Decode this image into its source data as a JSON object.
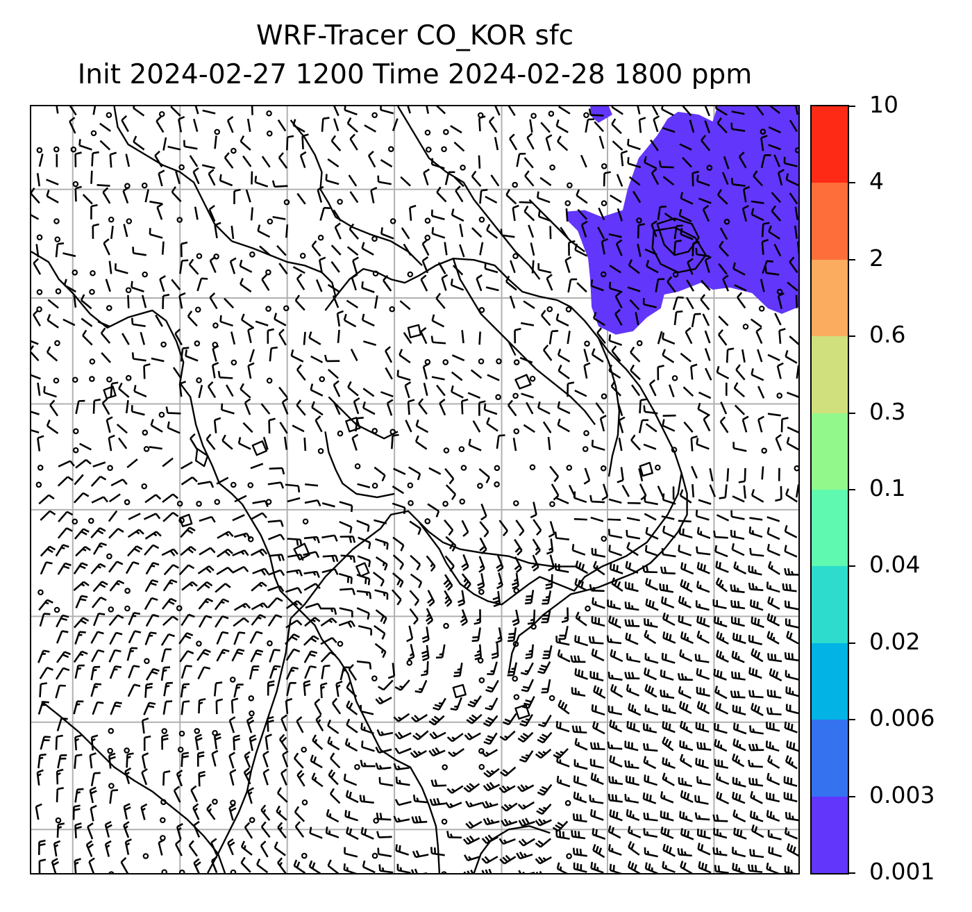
{
  "title": {
    "line1": "WRF-Tracer CO_KOR sfc",
    "line2": "Init 2024-02-27 1200 Time 2024-02-28 1800 ppm"
  },
  "colorbar": {
    "levels": [
      "0.001",
      "0.003",
      "0.006",
      "0.02",
      "0.04",
      "0.1",
      "0.3",
      "0.6",
      "2",
      "4",
      "10"
    ],
    "colors": [
      "#6236fb",
      "#3572f0",
      "#02b3e5",
      "#2ddccc",
      "#5ffaaf",
      "#93f88c",
      "#d0e07c",
      "#fbac5e",
      "#fe6e3a",
      "#fe2a16"
    ]
  },
  "map": {
    "tracer_color": "#6236fb",
    "land_outline_color": "#000000",
    "grid_color": "#b0b0b0",
    "wind_symbol_color": "#000000"
  }
}
